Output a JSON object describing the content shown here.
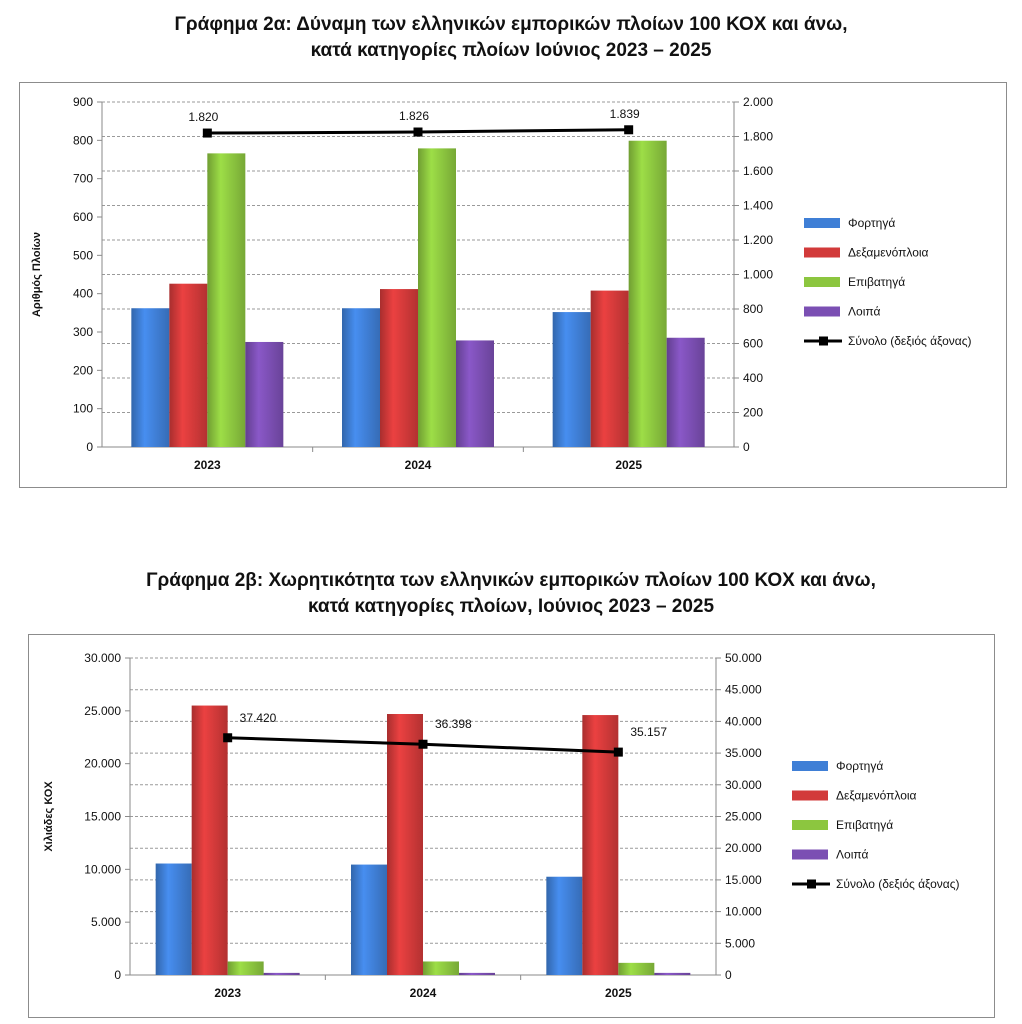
{
  "chart_data": [
    {
      "type": "bar",
      "title": [
        "Γράφημα 2α: Δύναμη των ελληνικών εμπορικών πλοίων 100 ΚΟΧ και άνω,",
        "κατά κατηγορίες πλοίων Ιούνιος 2023 – 2025"
      ],
      "ylabel": "Αριθμός Πλοίων",
      "categories": [
        "2023",
        "2024",
        "2025"
      ],
      "ylim": [
        0,
        900
      ],
      "y_ticks": [
        0,
        100,
        200,
        300,
        400,
        500,
        600,
        700,
        800,
        900
      ],
      "y_tick_labels": [
        "0",
        "100",
        "200",
        "300",
        "400",
        "500",
        "600",
        "700",
        "800",
        "900"
      ],
      "y2lim": [
        0,
        2000
      ],
      "y2_ticks": [
        0,
        200,
        400,
        600,
        800,
        1000,
        1200,
        1400,
        1600,
        1800,
        2000
      ],
      "y2_tick_labels": [
        "0",
        "200",
        "400",
        "600",
        "800",
        "1.000",
        "1.200",
        "1.400",
        "1.600",
        "1.800",
        "2.000"
      ],
      "grid": true,
      "legend_position": "right",
      "series": [
        {
          "name": "Φορτηγά",
          "color": "#3f7fd6",
          "values": [
            362,
            362,
            352
          ]
        },
        {
          "name": "Δεξαμενόπλοια",
          "color": "#d23a3a",
          "values": [
            426,
            412,
            408
          ]
        },
        {
          "name": "Επιβατηγά",
          "color": "#8cc63f",
          "values": [
            766,
            779,
            799
          ]
        },
        {
          "name": "Λοιπά",
          "color": "#7b4fb3",
          "values": [
            274,
            278,
            285
          ]
        }
      ],
      "line": {
        "name": "Σύνολο (δεξιός άξονας)",
        "color": "#000000",
        "values": [
          1820,
          1826,
          1839
        ],
        "labels": [
          "1.820",
          "1.826",
          "1.839"
        ]
      }
    },
    {
      "type": "bar",
      "title": [
        "Γράφημα 2β: Χωρητικότητα των ελληνικών εμπορικών πλοίων 100 ΚΟΧ και άνω,",
        "κατά κατηγορίες πλοίων, Ιούνιος 2023 – 2025"
      ],
      "ylabel": "Χιλιάδες ΚΟΧ",
      "categories": [
        "2023",
        "2024",
        "2025"
      ],
      "ylim": [
        0,
        30000
      ],
      "y_ticks": [
        0,
        5000,
        10000,
        15000,
        20000,
        25000,
        30000
      ],
      "y_tick_labels": [
        "0",
        "5.000",
        "10.000",
        "15.000",
        "20.000",
        "25.000",
        "30.000"
      ],
      "y2lim": [
        0,
        50000
      ],
      "y2_ticks": [
        0,
        5000,
        10000,
        15000,
        20000,
        25000,
        30000,
        35000,
        40000,
        45000,
        50000
      ],
      "y2_tick_labels": [
        "0",
        "5.000",
        "10.000",
        "15.000",
        "20.000",
        "25.000",
        "30.000",
        "35.000",
        "40.000",
        "45.000",
        "50.000"
      ],
      "grid": true,
      "legend_position": "right",
      "series": [
        {
          "name": "Φορτηγά",
          "color": "#3f7fd6",
          "values": [
            10550,
            10450,
            9300
          ]
        },
        {
          "name": "Δεξαμενόπλοια",
          "color": "#d23a3a",
          "values": [
            25500,
            24700,
            24600
          ]
        },
        {
          "name": "Επιβατηγά",
          "color": "#8cc63f",
          "values": [
            1280,
            1280,
            1150
          ]
        },
        {
          "name": "Λοιπά",
          "color": "#7b4fb3",
          "values": [
            200,
            200,
            200
          ]
        }
      ],
      "line": {
        "name": "Σύνολο (δεξιός άξονας)",
        "color": "#000000",
        "values": [
          37420,
          36398,
          35157
        ],
        "labels": [
          "37.420",
          "36.398",
          "35.157"
        ]
      }
    }
  ]
}
